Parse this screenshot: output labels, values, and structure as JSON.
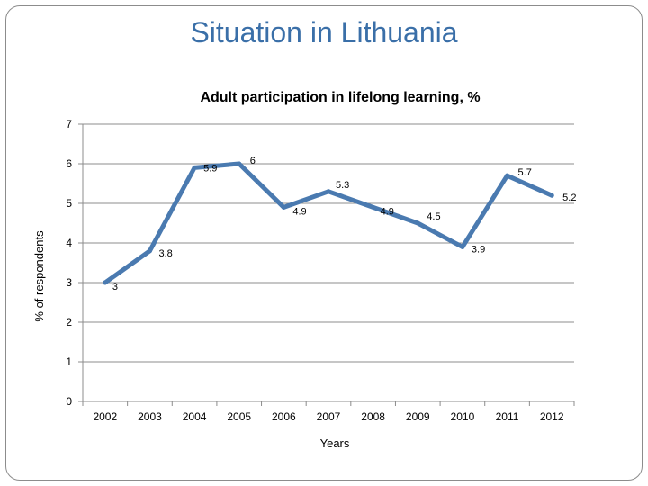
{
  "slide": {
    "title": "Situation in Lithuania"
  },
  "colors": {
    "series_line": "#4a7ab0",
    "axis": "#8c8c8c",
    "title": "#3a6fa8"
  },
  "chart_data": {
    "type": "line",
    "title": "Adult participation in lifelong learning, %",
    "xlabel": "Years",
    "ylabel": "% of respondents",
    "categories": [
      "2002",
      "2003",
      "2004",
      "2005",
      "2006",
      "2007",
      "2008",
      "2009",
      "2010",
      "2011",
      "2012"
    ],
    "series": [
      {
        "values": [
          3,
          3.8,
          5.9,
          6,
          4.9,
          5.3,
          4.9,
          4.5,
          3.9,
          5.7,
          5.2
        ]
      }
    ],
    "ylim": [
      0,
      7
    ],
    "yticks": [
      "0",
      "1",
      "2",
      "3",
      "4",
      "5",
      "6",
      "7"
    ],
    "grid": true,
    "legend": "none"
  }
}
